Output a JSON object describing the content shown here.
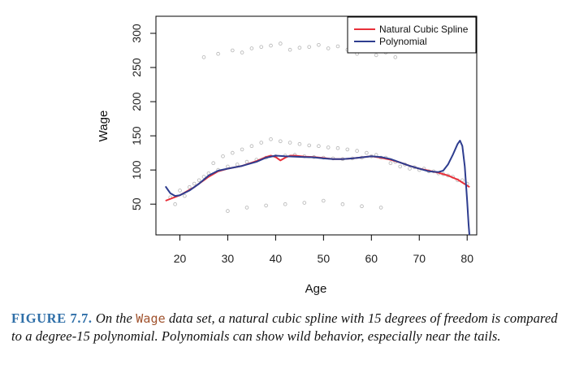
{
  "chart_data": {
    "type": "scatter",
    "xlabel": "Age",
    "ylabel": "Wage",
    "xlim": [
      15,
      82
    ],
    "ylim": [
      5,
      325
    ],
    "x_ticks": [
      20,
      30,
      40,
      50,
      60,
      70,
      80
    ],
    "y_ticks": [
      50,
      100,
      150,
      200,
      250,
      300
    ],
    "grid": false,
    "legend_position": "top-right",
    "scatter": {
      "name": "wage observations",
      "color": "#b5b5b5",
      "x": [
        18,
        20,
        22,
        24,
        26,
        28,
        30,
        32,
        34,
        36,
        38,
        40,
        42,
        44,
        46,
        48,
        50,
        52,
        54,
        56,
        58,
        60,
        62,
        64,
        66,
        68,
        70,
        72,
        74,
        76,
        78,
        80,
        19,
        21,
        23,
        25,
        27,
        29,
        31,
        33,
        35,
        37,
        39,
        41,
        43,
        45,
        47,
        49,
        51,
        53,
        55,
        57,
        59,
        61,
        63,
        65,
        67,
        69,
        71,
        73,
        75,
        77,
        79,
        25,
        28,
        31,
        33,
        35,
        37,
        39,
        41,
        43,
        45,
        47,
        49,
        51,
        53,
        55,
        57,
        59,
        61,
        63,
        65,
        30,
        34,
        38,
        42,
        46,
        50,
        54,
        58,
        62
      ],
      "y": [
        60,
        70,
        75,
        85,
        95,
        100,
        105,
        108,
        112,
        115,
        118,
        120,
        121,
        122,
        120,
        119,
        118,
        117,
        116,
        117,
        118,
        120,
        118,
        110,
        105,
        102,
        100,
        98,
        95,
        92,
        85,
        80,
        50,
        62,
        80,
        90,
        110,
        120,
        125,
        130,
        135,
        140,
        145,
        142,
        140,
        138,
        136,
        135,
        133,
        132,
        130,
        128,
        125,
        122,
        118,
        112,
        108,
        104,
        102,
        98,
        94,
        90,
        85,
        265,
        270,
        275,
        272,
        278,
        280,
        282,
        285,
        276,
        279,
        280,
        283,
        278,
        281,
        276,
        270,
        274,
        268,
        272,
        265,
        40,
        45,
        48,
        50,
        52,
        55,
        50,
        47,
        45
      ]
    },
    "series": [
      {
        "name": "Natural Cubic Spline",
        "color": "#e8303a",
        "x": [
          17,
          20,
          23,
          26,
          28,
          30,
          33,
          36,
          38,
          39,
          40,
          41,
          42,
          43,
          44,
          46,
          48,
          50,
          52,
          54,
          56,
          58,
          60,
          62,
          64,
          66,
          68,
          70,
          72,
          74,
          76,
          78,
          80.5
        ],
        "y": [
          55,
          63,
          75,
          90,
          98,
          102,
          106,
          113,
          119,
          121,
          119,
          114,
          118,
          121,
          121,
          119.5,
          119,
          117.5,
          116,
          116,
          117,
          118.5,
          120,
          118,
          115,
          111,
          106,
          102,
          99,
          96,
          92,
          86,
          75
        ]
      },
      {
        "name": "Polynomial",
        "color": "#2e3d8f",
        "x": [
          17,
          17.5,
          18,
          19,
          20,
          22,
          24,
          26,
          28,
          30,
          33,
          36,
          38,
          40,
          42,
          44,
          46,
          48,
          50,
          52,
          54,
          56,
          58,
          60,
          62,
          64,
          66,
          68,
          70,
          72,
          74,
          75,
          76,
          77,
          78,
          78.5,
          79,
          79.5,
          80,
          80.3,
          80.5
        ],
        "y": [
          76,
          71,
          66,
          62,
          63,
          70,
          80,
          92,
          99,
          102,
          106,
          112,
          118,
          121,
          120,
          119.5,
          119,
          118.5,
          117,
          116,
          116,
          117,
          118.5,
          120,
          119,
          116,
          111,
          106,
          102,
          98,
          97,
          99,
          108,
          122,
          138,
          143,
          135,
          105,
          55,
          20,
          2
        ]
      }
    ]
  },
  "caption": {
    "label": "FIGURE 7.7.",
    "part1": "On the",
    "code": "Wage",
    "part2": "data set, a natural cubic spline with 15 degrees of freedom is compared to a degree-15 polynomial. Polynomials can show wild behavior, especially near the tails."
  }
}
